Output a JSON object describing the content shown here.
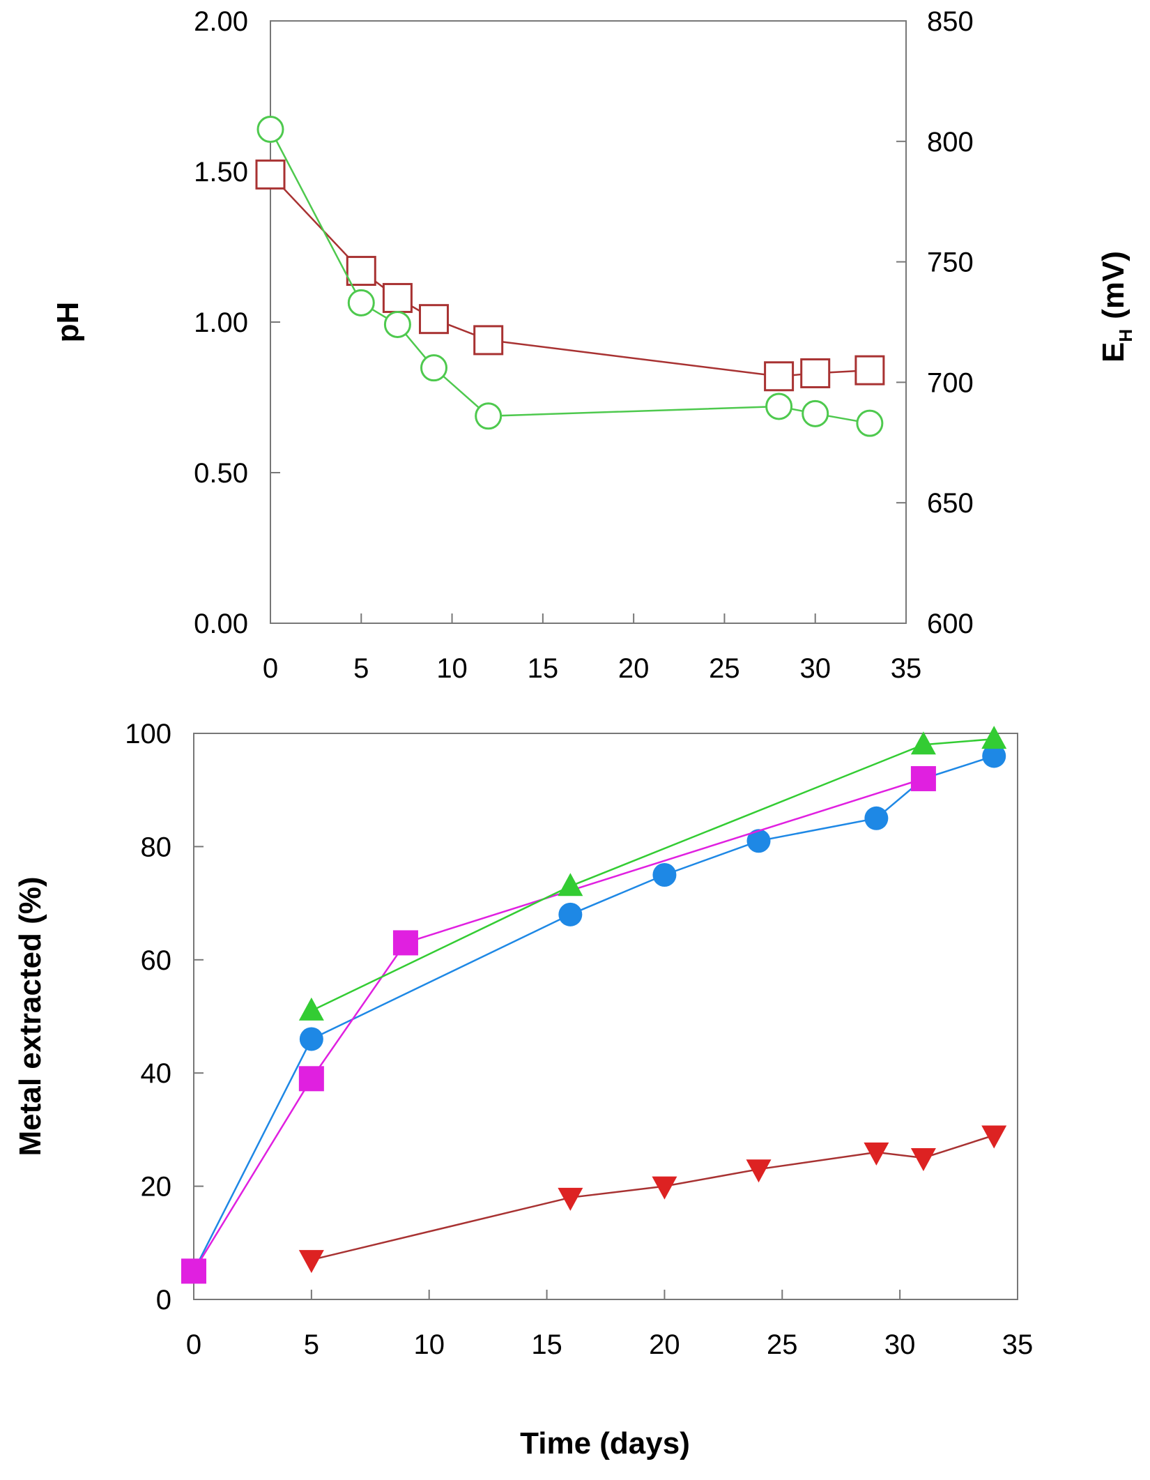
{
  "chart_data": [
    {
      "type": "line",
      "title": "",
      "xlabel": "",
      "xlim": [
        0,
        35
      ],
      "x_ticks": [
        "0",
        "5",
        "10",
        "15",
        "20",
        "25",
        "30",
        "35"
      ],
      "ylabel": "pH",
      "ylim": [
        0,
        2
      ],
      "y_ticks": [
        "0.00",
        "0.50",
        "1.00",
        "1.50",
        "2.00"
      ],
      "y2label_main": "E",
      "y2label_sub": "H",
      "y2label_unit": "(mV)",
      "y2lim": [
        600,
        850
      ],
      "y2_ticks": [
        "600",
        "650",
        "700",
        "750",
        "800",
        "850"
      ],
      "series": [
        {
          "name": "pH",
          "axis": "left",
          "marker": "open-square",
          "color": "#a83232",
          "x": [
            0,
            5,
            7,
            9,
            12,
            28,
            30,
            33
          ],
          "y": [
            1.49,
            1.17,
            1.08,
            1.01,
            0.94,
            0.82,
            0.83,
            0.84
          ]
        },
        {
          "name": "EH",
          "axis": "right",
          "marker": "open-circle",
          "color": "#4ec94e",
          "x": [
            0,
            5,
            7,
            9,
            12,
            28,
            30,
            33
          ],
          "y": [
            805,
            733,
            724,
            706,
            686,
            690,
            687,
            683
          ]
        }
      ]
    },
    {
      "type": "line",
      "title": "",
      "xlabel": "Time (days)",
      "xlim": [
        0,
        35
      ],
      "x_ticks": [
        "0",
        "5",
        "10",
        "15",
        "20",
        "25",
        "30",
        "35"
      ],
      "ylabel": "Metal extracted (%)",
      "ylim": [
        0,
        100
      ],
      "y_ticks": [
        "0",
        "20",
        "40",
        "60",
        "80",
        "100"
      ],
      "series": [
        {
          "name": "blue circles",
          "marker": "filled-circle",
          "color": "#1e88e5",
          "x": [
            0,
            5,
            16,
            20,
            24,
            29,
            31,
            34
          ],
          "y": [
            5,
            46,
            68,
            75,
            81,
            85,
            92,
            96
          ]
        },
        {
          "name": "magenta squares",
          "marker": "filled-square",
          "color": "#e020e0",
          "x": [
            0,
            5,
            9,
            31
          ],
          "y": [
            5,
            39,
            63,
            92
          ]
        },
        {
          "name": "green triangles",
          "marker": "filled-triangle-up",
          "color": "#33cc33",
          "x": [
            5,
            16,
            31,
            34
          ],
          "y": [
            51,
            73,
            98,
            99
          ]
        },
        {
          "name": "red triangles",
          "marker": "filled-triangle-down",
          "color": "#dd2222",
          "line_color": "#a83232",
          "x": [
            5,
            16,
            20,
            24,
            29,
            31,
            34
          ],
          "y": [
            7,
            18,
            20,
            23,
            26,
            25,
            29
          ]
        }
      ]
    }
  ]
}
